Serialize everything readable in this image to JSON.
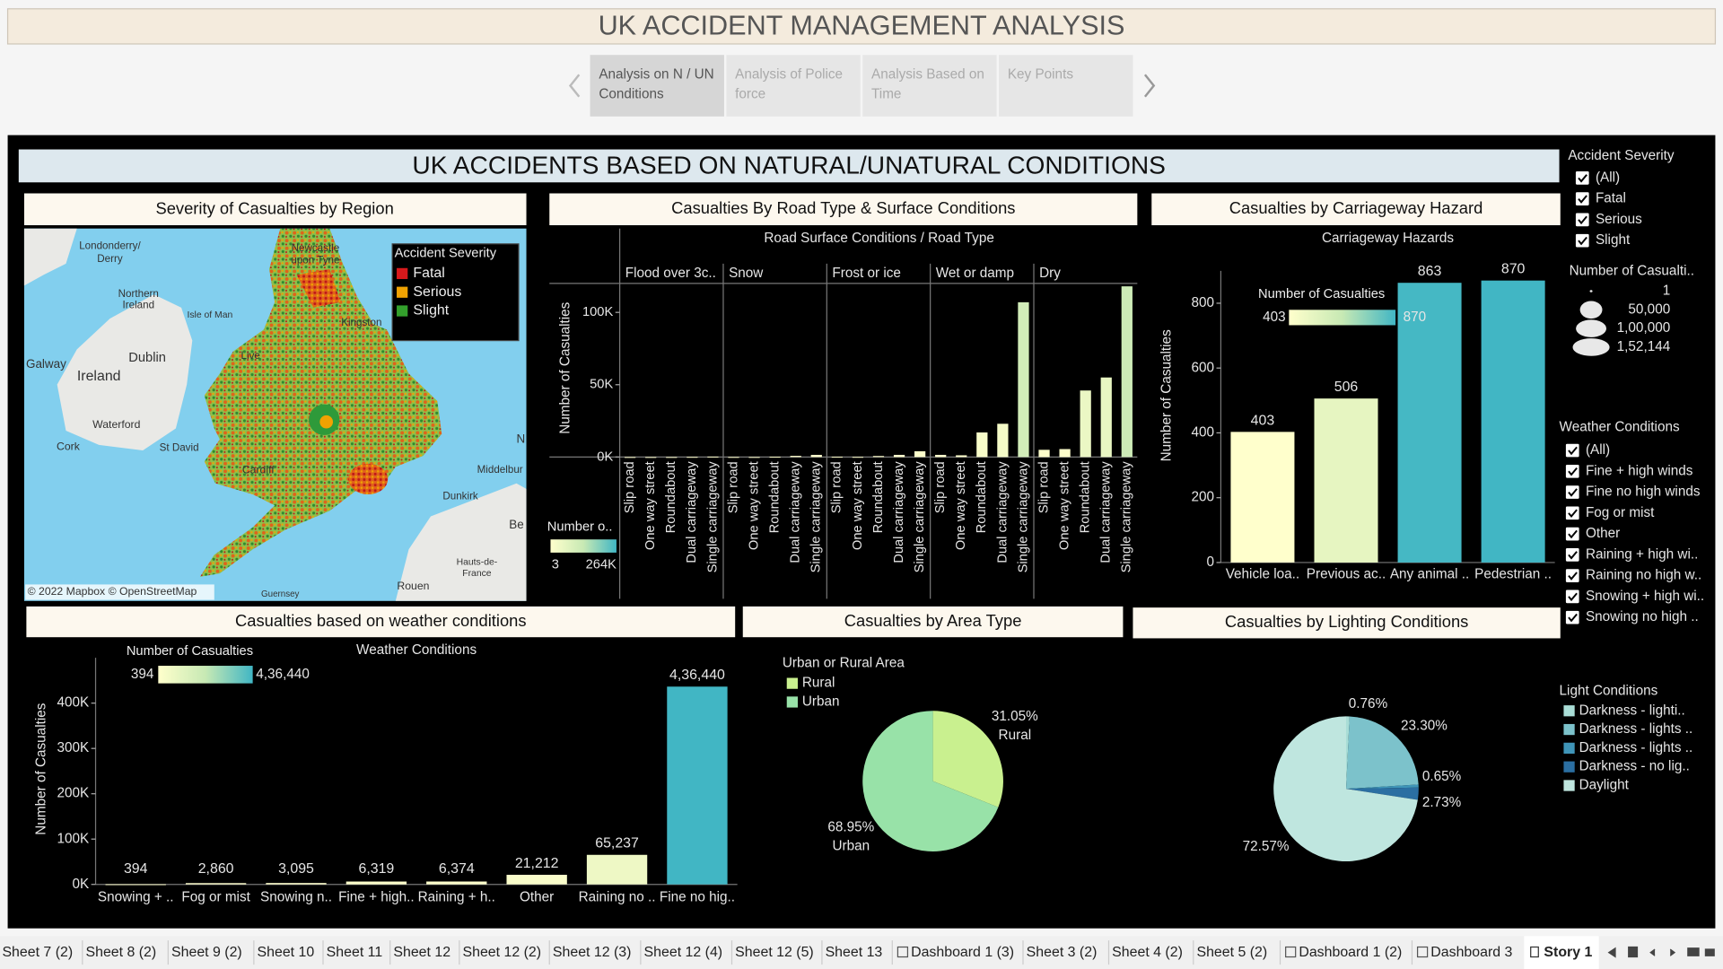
{
  "header": {
    "title": "UK ACCIDENT MANAGEMENT ANALYSIS"
  },
  "story_tabs": [
    [
      "Analysis on N / UN",
      "Conditions"
    ],
    [
      "Analysis of Police",
      "force"
    ],
    [
      "Analysis Based on",
      "Time"
    ],
    [
      "Key Points"
    ]
  ],
  "dashboard_title": "UK ACCIDENTS BASED ON NATURAL/UNATURAL CONDITIONS",
  "map": {
    "title": "Severity of Casualties by Region",
    "legend_title": "Accident Severity",
    "legend": [
      {
        "name": "Fatal",
        "color": "#d7191c"
      },
      {
        "name": "Serious",
        "color": "#f0a202"
      },
      {
        "name": "Slight",
        "color": "#33a02c"
      }
    ],
    "places": [
      "Londonderry/",
      "Derry",
      "Newcastle",
      "upon Tyne",
      "Northern",
      "Ireland",
      "Isle of Man",
      "Galway",
      "Dublin",
      "Ireland",
      "Waterford",
      "Cork",
      "St David",
      "Cardiff",
      "Live",
      "Kingston",
      "Dunkirk",
      "Middelbur",
      "Hauts-de-",
      "France",
      "Rouen",
      "Guernsey",
      "Be",
      "N"
    ],
    "attribution": "© 2022 Mapbox © OpenStreetMap"
  },
  "chart_data": [
    {
      "type": "faceted_bar",
      "title": "Casualties By Road Type & Surface Conditions",
      "subtitle": "Road Surface Conditions  /  Road Type",
      "y_label": "Number of Casualties",
      "categories": [
        "Slip road",
        "One way street",
        "Roundabout",
        "Dual carriageway",
        "Single carriageway"
      ],
      "series": [
        {
          "name": "Flood over 3c..",
          "values": [
            10,
            5,
            20,
            100,
            300
          ]
        },
        {
          "name": "Snow",
          "values": [
            50,
            30,
            200,
            800,
            1500
          ]
        },
        {
          "name": "Frost or ice",
          "values": [
            200,
            100,
            700,
            1500,
            4000
          ]
        },
        {
          "name": "Wet or damp",
          "values": [
            1500,
            1200,
            17000,
            23000,
            107000
          ]
        },
        {
          "name": "Dry",
          "values": [
            5000,
            5500,
            46000,
            55000,
            118000
          ]
        }
      ],
      "ylim": [
        0,
        120000
      ],
      "yticks": [
        {
          "value": 0,
          "label": "0K"
        },
        {
          "value": 50000,
          "label": "50K"
        },
        {
          "value": 100000,
          "label": "100K"
        }
      ],
      "color_title": "Number o..",
      "color_range": [
        3,
        {
          "value": 264000,
          "label": "264K"
        }
      ],
      "colors": [
        "#ffffcc",
        "#c7e9b4",
        "#41b6c4"
      ]
    },
    {
      "type": "bar",
      "title": "Casualties by Carriageway Hazard",
      "subtitle": "Carriageway Hazards",
      "y_label": "Number of Casualties",
      "categories": [
        "Vehicle loa..",
        "Previous ac..",
        "Any animal ..",
        "Pedestrian .."
      ],
      "values": [
        403,
        506,
        863,
        870
      ],
      "ylim": [
        0,
        900
      ],
      "yticks": [
        0,
        200,
        400,
        600,
        800
      ],
      "color_title": "Number of Casualties",
      "color_range": [
        403,
        870
      ],
      "colors": [
        "#ffffcc",
        "#c7e9b4",
        "#41b6c4"
      ]
    },
    {
      "type": "bar",
      "title": "Casualties based on weather conditions",
      "subtitle": "Weather Conditions",
      "y_label": "Number of Casualties",
      "categories": [
        "Snowing + ..",
        "Fog or mist",
        "Snowing n..",
        "Fine + high..",
        "Raining + h..",
        "Other",
        "Raining no ..",
        "Fine no hig.."
      ],
      "values": [
        394,
        2860,
        3095,
        6319,
        6374,
        21212,
        65237,
        436440
      ],
      "value_labels": [
        "394",
        "2,860",
        "3,095",
        "6,319",
        "6,374",
        "21,212",
        "65,237",
        "4,36,440"
      ],
      "ylim": [
        0,
        500000
      ],
      "yticks": [
        {
          "value": 0,
          "label": "0K"
        },
        {
          "value": 100000,
          "label": "100K"
        },
        {
          "value": 200000,
          "label": "200K"
        },
        {
          "value": 300000,
          "label": "300K"
        },
        {
          "value": 400000,
          "label": "400K"
        }
      ],
      "color_title": "Number of Casualties",
      "color_range": [
        394,
        {
          "value": 436440,
          "label": "4,36,440"
        }
      ],
      "colors": [
        "#ffffcc",
        "#c7e9b4",
        "#41b6c4"
      ]
    },
    {
      "type": "pie",
      "title": "Casualties by Area Type",
      "legend_title": "Urban or Rural Area",
      "categories": [
        "Rural",
        "Urban"
      ],
      "values": [
        31.05,
        68.95
      ],
      "value_labels": [
        "31.05%",
        "68.95%"
      ],
      "colors": [
        "#c9f08f",
        "#98e2a8"
      ]
    },
    {
      "type": "pie",
      "title": "Casualties by Lighting Conditions",
      "legend_title": "Light Conditions",
      "categories": [
        "Darkness - lighti..",
        "Darkness - lights ..",
        "Darkness - lights ..",
        "Darkness - no lig..",
        "Daylight"
      ],
      "values": [
        0.76,
        23.3,
        0.65,
        2.73,
        72.57
      ],
      "value_labels": [
        "0.76%",
        "23.30%",
        "0.65%",
        "2.73%",
        "72.57%"
      ],
      "colors": [
        "#a9ddd6",
        "#7cc2cb",
        "#3f95b8",
        "#2b6fa2",
        "#bfe6df"
      ]
    }
  ],
  "filters": {
    "severity": {
      "title": "Accident Severity",
      "options": [
        "(All)",
        "Fatal",
        "Serious",
        "Slight"
      ]
    },
    "size_legend": {
      "title": "Number of Casualti..",
      "values": [
        1,
        {
          "value": 50000,
          "label": "50,000"
        },
        {
          "value": 100000,
          "label": "1,00,000"
        },
        {
          "value": 152144,
          "label": "1,52,144"
        }
      ]
    },
    "weather": {
      "title": "Weather Conditions",
      "options": [
        "(All)",
        "Fine + high winds",
        "Fine no high winds",
        "Fog or mist",
        "Other",
        "Raining + high wi..",
        "Raining no high w..",
        "Snowing + high wi..",
        "Snowing no high .."
      ]
    }
  },
  "sheet_tabs": [
    "Sheet 7 (2)",
    "Sheet 8 (2)",
    "Sheet 9 (2)",
    "Sheet 10",
    "Sheet 11",
    "Sheet 12",
    "Sheet 12 (2)",
    "Sheet 12 (3)",
    "Sheet 12 (4)",
    "Sheet 12 (5)",
    "Sheet 13",
    "Dashboard 1 (3)",
    "Sheet 3 (2)",
    "Sheet 4 (2)",
    "Sheet 5 (2)",
    "Dashboard 1 (2)",
    "Dashboard 3",
    "Story 1"
  ]
}
